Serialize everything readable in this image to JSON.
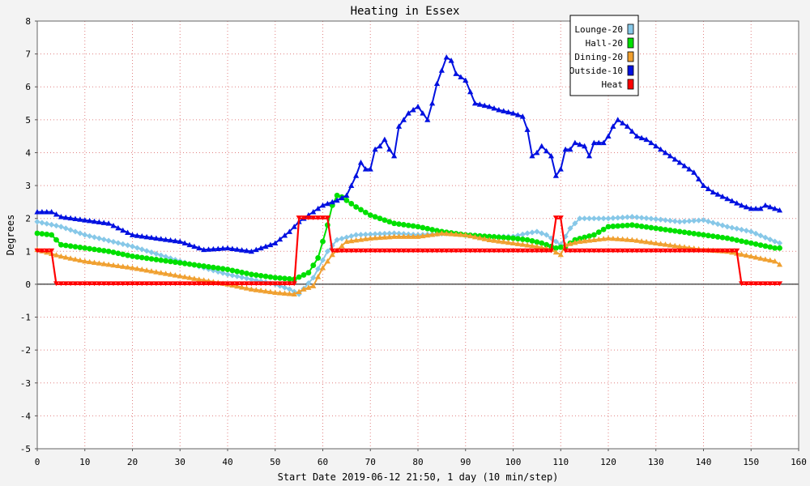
{
  "chart_data": {
    "type": "line",
    "title": "Heating in Essex",
    "xlabel": "Start Date 2019-06-12 21:50, 1 day (10 min/step)",
    "ylabel": "Degrees",
    "xlim": [
      0,
      160
    ],
    "ylim": [
      -5,
      8
    ],
    "xticks": [
      0,
      10,
      20,
      30,
      40,
      50,
      60,
      70,
      80,
      90,
      100,
      110,
      120,
      130,
      140,
      150,
      160
    ],
    "yticks": [
      -5,
      -4,
      -3,
      -2,
      -1,
      0,
      1,
      2,
      3,
      4,
      5,
      6,
      7,
      8
    ],
    "grid": true,
    "legend_position": "top-right",
    "series": [
      {
        "name": "Lounge-20",
        "color": "#87c8e8",
        "marker": "diamond",
        "points": [
          [
            0,
            1.9
          ],
          [
            5,
            1.75
          ],
          [
            10,
            1.5
          ],
          [
            20,
            1.15
          ],
          [
            30,
            0.7
          ],
          [
            40,
            0.3
          ],
          [
            45,
            0.15
          ],
          [
            50,
            0
          ],
          [
            53,
            -0.15
          ],
          [
            55,
            -0.3
          ],
          [
            58,
            0.2
          ],
          [
            61,
            1.0
          ],
          [
            63,
            1.35
          ],
          [
            67,
            1.5
          ],
          [
            75,
            1.55
          ],
          [
            80,
            1.5
          ],
          [
            87,
            1.55
          ],
          [
            93,
            1.45
          ],
          [
            100,
            1.45
          ],
          [
            103,
            1.55
          ],
          [
            105,
            1.6
          ],
          [
            107,
            1.5
          ],
          [
            110,
            1.2
          ],
          [
            112,
            1.7
          ],
          [
            114,
            2.0
          ],
          [
            120,
            2.0
          ],
          [
            125,
            2.05
          ],
          [
            130,
            1.98
          ],
          [
            135,
            1.9
          ],
          [
            140,
            1.95
          ],
          [
            145,
            1.75
          ],
          [
            150,
            1.6
          ],
          [
            155,
            1.3
          ],
          [
            156,
            1.25
          ]
        ]
      },
      {
        "name": "Hall-20",
        "color": "#00e000",
        "marker": "circle",
        "points": [
          [
            0,
            1.55
          ],
          [
            3,
            1.5
          ],
          [
            5,
            1.2
          ],
          [
            10,
            1.1
          ],
          [
            15,
            1.0
          ],
          [
            20,
            0.85
          ],
          [
            30,
            0.65
          ],
          [
            40,
            0.45
          ],
          [
            45,
            0.3
          ],
          [
            50,
            0.2
          ],
          [
            54,
            0.15
          ],
          [
            57,
            0.35
          ],
          [
            59,
            0.8
          ],
          [
            61,
            1.8
          ],
          [
            62,
            2.4
          ],
          [
            63,
            2.7
          ],
          [
            64,
            2.65
          ],
          [
            67,
            2.35
          ],
          [
            70,
            2.1
          ],
          [
            75,
            1.85
          ],
          [
            80,
            1.75
          ],
          [
            85,
            1.6
          ],
          [
            90,
            1.5
          ],
          [
            95,
            1.45
          ],
          [
            100,
            1.4
          ],
          [
            103,
            1.35
          ],
          [
            106,
            1.25
          ],
          [
            109,
            1.1
          ],
          [
            111,
            1.15
          ],
          [
            113,
            1.35
          ],
          [
            117,
            1.5
          ],
          [
            120,
            1.75
          ],
          [
            125,
            1.8
          ],
          [
            130,
            1.7
          ],
          [
            135,
            1.6
          ],
          [
            140,
            1.5
          ],
          [
            145,
            1.4
          ],
          [
            150,
            1.25
          ],
          [
            155,
            1.1
          ],
          [
            156,
            1.1
          ]
        ]
      },
      {
        "name": "Dining-20",
        "color": "#f0a030",
        "marker": "triangle",
        "points": [
          [
            0,
            1.05
          ],
          [
            5,
            0.85
          ],
          [
            10,
            0.7
          ],
          [
            20,
            0.5
          ],
          [
            30,
            0.25
          ],
          [
            40,
            0.0
          ],
          [
            45,
            -0.15
          ],
          [
            50,
            -0.25
          ],
          [
            54,
            -0.3
          ],
          [
            56,
            -0.15
          ],
          [
            58,
            -0.05
          ],
          [
            60,
            0.5
          ],
          [
            62,
            0.9
          ],
          [
            65,
            1.3
          ],
          [
            70,
            1.4
          ],
          [
            75,
            1.45
          ],
          [
            80,
            1.45
          ],
          [
            85,
            1.55
          ],
          [
            90,
            1.5
          ],
          [
            95,
            1.35
          ],
          [
            100,
            1.25
          ],
          [
            105,
            1.15
          ],
          [
            108,
            1.05
          ],
          [
            110,
            0.9
          ],
          [
            111,
            1.2
          ],
          [
            114,
            1.3
          ],
          [
            120,
            1.4
          ],
          [
            125,
            1.35
          ],
          [
            130,
            1.25
          ],
          [
            135,
            1.15
          ],
          [
            140,
            1.05
          ],
          [
            145,
            1.0
          ],
          [
            150,
            0.85
          ],
          [
            155,
            0.7
          ],
          [
            156,
            0.6
          ]
        ]
      },
      {
        "name": "Outside-10",
        "color": "#0010e0",
        "marker": "triangle",
        "points": [
          [
            0,
            2.2
          ],
          [
            3,
            2.2
          ],
          [
            5,
            2.05
          ],
          [
            10,
            1.95
          ],
          [
            15,
            1.85
          ],
          [
            20,
            1.5
          ],
          [
            25,
            1.4
          ],
          [
            30,
            1.3
          ],
          [
            35,
            1.05
          ],
          [
            40,
            1.1
          ],
          [
            45,
            1.0
          ],
          [
            50,
            1.25
          ],
          [
            53,
            1.6
          ],
          [
            55,
            1.9
          ],
          [
            58,
            2.2
          ],
          [
            60,
            2.4
          ],
          [
            63,
            2.55
          ],
          [
            65,
            2.7
          ],
          [
            67,
            3.3
          ],
          [
            68,
            3.7
          ],
          [
            69,
            3.5
          ],
          [
            70,
            3.5
          ],
          [
            71,
            4.1
          ],
          [
            72,
            4.2
          ],
          [
            73,
            4.4
          ],
          [
            74,
            4.1
          ],
          [
            75,
            3.9
          ],
          [
            76,
            4.8
          ],
          [
            77,
            5.0
          ],
          [
            78,
            5.2
          ],
          [
            80,
            5.4
          ],
          [
            81,
            5.2
          ],
          [
            82,
            5.0
          ],
          [
            83,
            5.5
          ],
          [
            84,
            6.1
          ],
          [
            85,
            6.5
          ],
          [
            86,
            6.9
          ],
          [
            87,
            6.8
          ],
          [
            88,
            6.4
          ],
          [
            90,
            6.2
          ],
          [
            92,
            5.5
          ],
          [
            95,
            5.4
          ],
          [
            97,
            5.3
          ],
          [
            100,
            5.2
          ],
          [
            102,
            5.1
          ],
          [
            103,
            4.7
          ],
          [
            104,
            3.9
          ],
          [
            105,
            4.0
          ],
          [
            106,
            4.2
          ],
          [
            108,
            3.9
          ],
          [
            109,
            3.3
          ],
          [
            110,
            3.5
          ],
          [
            111,
            4.1
          ],
          [
            112,
            4.1
          ],
          [
            113,
            4.3
          ],
          [
            115,
            4.2
          ],
          [
            116,
            3.9
          ],
          [
            117,
            4.3
          ],
          [
            119,
            4.3
          ],
          [
            120,
            4.5
          ],
          [
            121,
            4.8
          ],
          [
            122,
            5.0
          ],
          [
            124,
            4.8
          ],
          [
            126,
            4.5
          ],
          [
            128,
            4.4
          ],
          [
            130,
            4.2
          ],
          [
            132,
            4.0
          ],
          [
            135,
            3.7
          ],
          [
            137,
            3.5
          ],
          [
            138,
            3.4
          ],
          [
            140,
            3.0
          ],
          [
            142,
            2.8
          ],
          [
            145,
            2.6
          ],
          [
            148,
            2.4
          ],
          [
            150,
            2.3
          ],
          [
            152,
            2.3
          ],
          [
            153,
            2.4
          ],
          [
            155,
            2.3
          ],
          [
            156,
            2.25
          ]
        ]
      },
      {
        "name": "Heat",
        "color": "#ff0000",
        "marker": "triangle-down",
        "points": [
          [
            0,
            1
          ],
          [
            3,
            1
          ],
          [
            4,
            0
          ],
          [
            54,
            0
          ],
          [
            55,
            2
          ],
          [
            61,
            2
          ],
          [
            62,
            1
          ],
          [
            108,
            1
          ],
          [
            109,
            2
          ],
          [
            110,
            2
          ],
          [
            111,
            1
          ],
          [
            147,
            1
          ],
          [
            148,
            0
          ],
          [
            156,
            0
          ]
        ]
      }
    ]
  }
}
